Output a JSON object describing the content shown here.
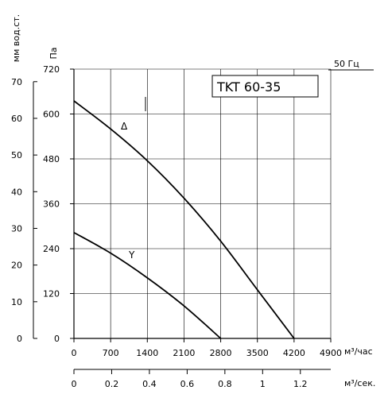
{
  "chart_data": {
    "type": "line",
    "title": "",
    "model_label": "TKT 60-35",
    "frequency_label": "50 Гц",
    "xlabel": "м³/час",
    "x2label": "м³/сек.",
    "ylabel_left": "мм вод.ст.",
    "ylabel_right": "Па",
    "xlim": [
      0,
      4900
    ],
    "ylim": [
      0,
      720
    ],
    "x_ticks": [
      "0",
      "700",
      "1400",
      "2100",
      "2800",
      "3500",
      "4200",
      "4900"
    ],
    "y_ticks_pa": [
      "0",
      "120",
      "240",
      "360",
      "480",
      "600",
      "720"
    ],
    "y_ticks_mm": [
      "0",
      "10",
      "20",
      "30",
      "40",
      "50",
      "60",
      "70"
    ],
    "x2_ticks": [
      "0",
      "0.2",
      "0.4",
      "0.6",
      "0.8",
      "1",
      "1.2"
    ],
    "grid": true,
    "series": [
      {
        "name": "Δ",
        "x": [
          0,
          700,
          1400,
          2100,
          2800,
          3500,
          4200
        ],
        "y": [
          635,
          560,
          475,
          375,
          260,
          130,
          0
        ]
      },
      {
        "name": "Y",
        "x": [
          0,
          700,
          1400,
          2100,
          2800
        ],
        "y": [
          283,
          228,
          162,
          87,
          0
        ]
      }
    ]
  }
}
